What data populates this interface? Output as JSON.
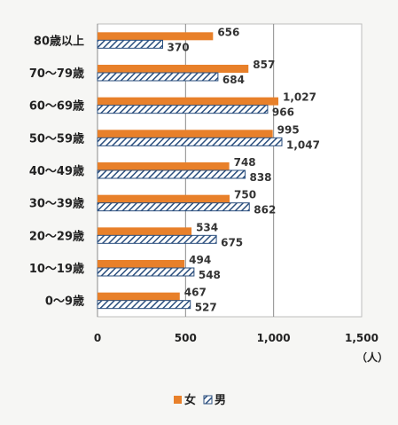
{
  "chart_data": {
    "type": "bar",
    "orientation": "horizontal",
    "categories": [
      "80歳以上",
      "70～79歳",
      "60～69歳",
      "50～59歳",
      "40～49歳",
      "30～39歳",
      "20～29歳",
      "10～19歳",
      "0～9歳"
    ],
    "series": [
      {
        "name": "女",
        "values": [
          656,
          857,
          1027,
          995,
          748,
          750,
          534,
          494,
          467
        ],
        "labels": [
          "656",
          "857",
          "1,027",
          "995",
          "748",
          "750",
          "534",
          "494",
          "467"
        ],
        "color": "#e8802a"
      },
      {
        "name": "男",
        "values": [
          370,
          684,
          966,
          1047,
          838,
          862,
          675,
          548,
          527
        ],
        "labels": [
          "370",
          "684",
          "966",
          "1,047",
          "838",
          "862",
          "675",
          "548",
          "527"
        ],
        "color": "#2b4f7e"
      }
    ],
    "xlim": [
      0,
      1500
    ],
    "xticks": [
      0,
      500,
      1000,
      1500
    ],
    "xtick_labels": [
      "0",
      "500",
      "1,000",
      "1,500"
    ],
    "xlabel": "（人）",
    "grid": true,
    "legend_position": "bottom"
  }
}
